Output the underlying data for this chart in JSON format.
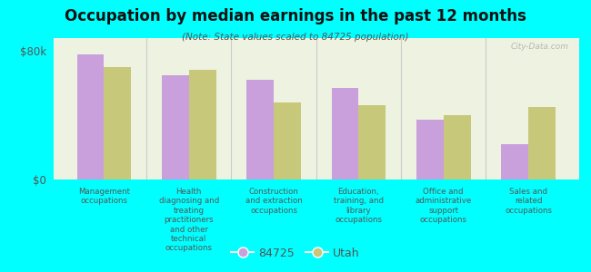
{
  "title": "Occupation by median earnings in the past 12 months",
  "subtitle": "(Note: State values scaled to 84725 population)",
  "categories": [
    "Management\noccupations",
    "Health\ndiagnosing and\ntreating\npractitioners\nand other\ntechnical\noccupations",
    "Construction\nand extraction\noccupations",
    "Education,\ntraining, and\nlibrary\noccupations",
    "Office and\nadministrative\nsupport\noccupations",
    "Sales and\nrelated\noccupations"
  ],
  "values_84725": [
    78000,
    65000,
    62000,
    57000,
    37000,
    22000
  ],
  "values_utah": [
    70000,
    68000,
    48000,
    46000,
    40000,
    45000
  ],
  "color_84725": "#c9a0dc",
  "color_utah": "#c8c87a",
  "background_color": "#00ffff",
  "plot_bg_color": "#eef2e0",
  "ylim": [
    0,
    88000
  ],
  "ytick_labels": [
    "$0",
    "$80k"
  ],
  "ytick_values": [
    0,
    80000
  ],
  "legend_label_84725": "84725",
  "legend_label_utah": "Utah",
  "watermark": "City-Data.com"
}
